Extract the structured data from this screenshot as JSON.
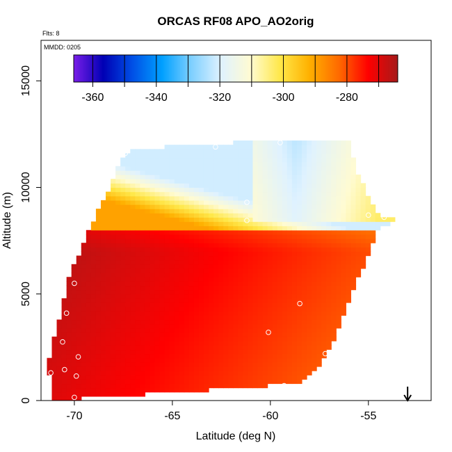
{
  "chart_data": {
    "type": "heatmap",
    "title": "ORCAS RF08 APO_AO2orig",
    "info": {
      "flts": "Flts: 8",
      "mmdd": "MMDD: 0205"
    },
    "xlabel": "Latitude (deg N)",
    "ylabel": "Altitude (m)",
    "xlim": [
      -71.7,
      -51.8
    ],
    "ylim": [
      0,
      16900
    ],
    "xticks": [
      -70,
      -65,
      -60,
      -55
    ],
    "yticks": [
      0,
      5000,
      10000,
      15000
    ],
    "colorbar": {
      "range": [
        -366,
        -264
      ],
      "ticks": [
        -360,
        -340,
        -320,
        -300,
        -280
      ],
      "colors": [
        "#7a1ee8",
        "#0000b4",
        "#0050e6",
        "#00a0ff",
        "#7fd0ff",
        "#dff2ff",
        "#fffbd2",
        "#ffe84a",
        "#ffb000",
        "#ff6a00",
        "#ff0000",
        "#a51a1a"
      ]
    },
    "field": {
      "lat_range": [
        -71.4,
        -53.4
      ],
      "alt_range": [
        0,
        12300
      ],
      "boundary": [
        [
          -71.2,
          0
        ],
        [
          -58.5,
          800
        ],
        [
          -57.5,
          1700
        ],
        [
          -56.7,
          2900
        ],
        [
          -55.4,
          6000
        ],
        [
          -54.5,
          8000
        ],
        [
          -53.5,
          8600
        ],
        [
          -54.5,
          8700
        ],
        [
          -55.5,
          10600
        ],
        [
          -56.0,
          12200
        ],
        [
          -59.5,
          12200
        ],
        [
          -63.0,
          12050
        ],
        [
          -67.0,
          11800
        ],
        [
          -67.6,
          11400
        ],
        [
          -68.2,
          10000
        ],
        [
          -69.0,
          8500
        ],
        [
          -69.8,
          6800
        ],
        [
          -70.3,
          5800
        ],
        [
          -70.6,
          4500
        ],
        [
          -71.0,
          3000
        ],
        [
          -71.4,
          1400
        ],
        [
          -71.0,
          800
        ]
      ],
      "cut_box": [
        -64.8,
        0,
        -58.5,
        400
      ],
      "notes": "APO values interpolated along latitude/altitude; high-altitude air is light blue, lower troposphere orange to deep red"
    },
    "points": [
      {
        "lat": -67.4,
        "alt": 11600
      },
      {
        "lat": -62.8,
        "alt": 11900
      },
      {
        "lat": -59.5,
        "alt": 12100
      },
      {
        "lat": -61.2,
        "alt": 9300
      },
      {
        "lat": -61.2,
        "alt": 8450
      },
      {
        "lat": -55.0,
        "alt": 8700
      },
      {
        "lat": -54.2,
        "alt": 8600
      },
      {
        "lat": -70.0,
        "alt": 5500
      },
      {
        "lat": -58.5,
        "alt": 4550
      },
      {
        "lat": -70.4,
        "alt": 4100
      },
      {
        "lat": -60.1,
        "alt": 3200
      },
      {
        "lat": -70.6,
        "alt": 2750
      },
      {
        "lat": -57.2,
        "alt": 2200
      },
      {
        "lat": -69.8,
        "alt": 2050
      },
      {
        "lat": -70.5,
        "alt": 1450
      },
      {
        "lat": -71.2,
        "alt": 1300
      },
      {
        "lat": -69.9,
        "alt": 1150
      },
      {
        "lat": -59.3,
        "alt": 700
      },
      {
        "lat": -70.0,
        "alt": 150
      }
    ],
    "marker": {
      "symbol": "down-arrow",
      "lat": -53.0,
      "at": "bottom-axis"
    }
  }
}
